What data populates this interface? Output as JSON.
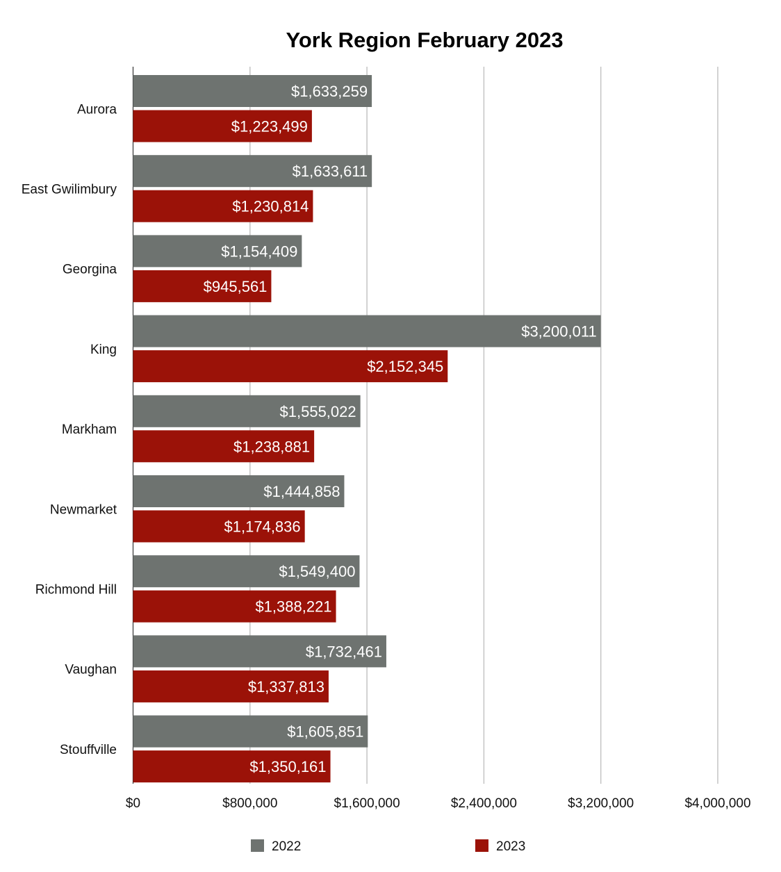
{
  "chart_data": {
    "type": "bar",
    "orientation": "horizontal",
    "title": "York Region February 2023",
    "categories": [
      "Aurora",
      "East Gwilimbury",
      "Georgina",
      "King",
      "Markham",
      "Newmarket",
      "Richmond Hill",
      "Vaughan",
      "Stouffville"
    ],
    "series": [
      {
        "name": "2022",
        "color": "#6e7370",
        "values": [
          1633259,
          1633611,
          1154409,
          3200011,
          1555022,
          1444858,
          1549400,
          1732461,
          1605851
        ],
        "labels": [
          "$1,633,259",
          "$1,633,611",
          "$1,154,409",
          "$3,200,011",
          "$1,555,022",
          "$1,444,858",
          "$1,549,400",
          "$1,732,461",
          "$1,605,851"
        ]
      },
      {
        "name": "2023",
        "color": "#9b1208",
        "values": [
          1223499,
          1230814,
          945561,
          2152345,
          1238881,
          1174836,
          1388221,
          1337813,
          1350161
        ],
        "labels": [
          "$1,223,499",
          "$1,230,814",
          "$945,561",
          "$2,152,345",
          "$1,238,881",
          "$1,174,836",
          "$1,388,221",
          "$1,337,813",
          "$1,350,161"
        ]
      }
    ],
    "xlim": [
      0,
      4000000
    ],
    "xticks": [
      0,
      800000,
      1600000,
      2400000,
      3200000,
      4000000
    ],
    "xtick_labels": [
      "$0",
      "$800,000",
      "$1,600,000",
      "$2,400,000",
      "$3,200,000",
      "$4,000,000"
    ],
    "xlabel": "",
    "ylabel": "",
    "grid": "vertical",
    "legend_position": "bottom"
  }
}
